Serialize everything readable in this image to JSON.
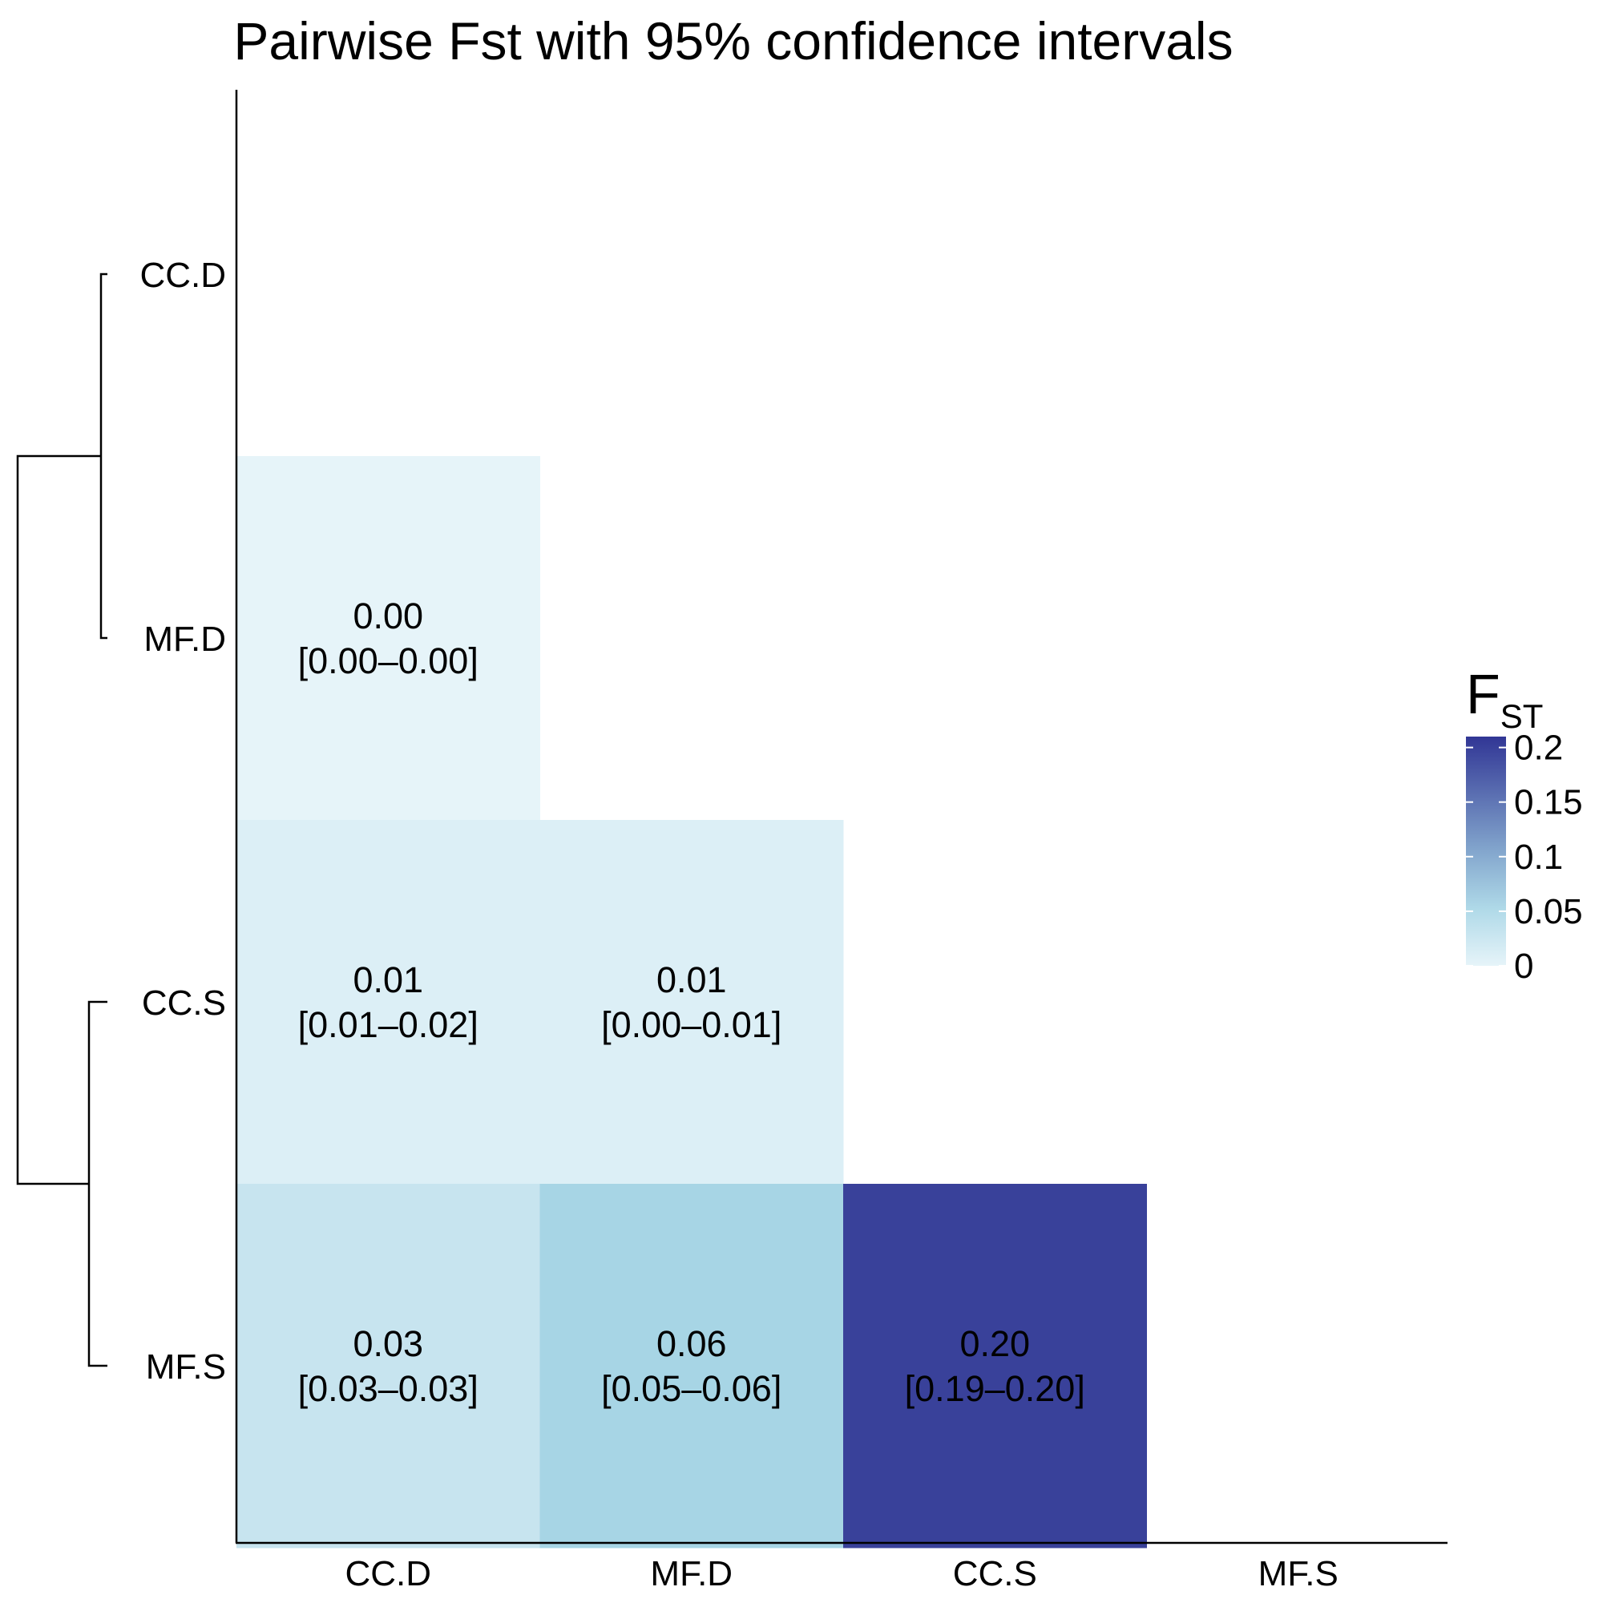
{
  "chart_data": {
    "type": "heatmap",
    "title": "Pairwise Fst with 95% confidence intervals",
    "rows": [
      "CC.D",
      "MF.D",
      "CC.S",
      "MF.S"
    ],
    "columns": [
      "CC.D",
      "MF.D",
      "CC.S",
      "MF.S"
    ],
    "cells": [
      {
        "row": "MF.D",
        "col": "CC.D",
        "value": 0.0,
        "label": "0.00",
        "ci": "[0.00–0.00]"
      },
      {
        "row": "CC.S",
        "col": "CC.D",
        "value": 0.01,
        "label": "0.01",
        "ci": "[0.01–0.02]"
      },
      {
        "row": "CC.S",
        "col": "MF.D",
        "value": 0.01,
        "label": "0.01",
        "ci": "[0.00–0.01]"
      },
      {
        "row": "MF.S",
        "col": "CC.D",
        "value": 0.03,
        "label": "0.03",
        "ci": "[0.03–0.03]"
      },
      {
        "row": "MF.S",
        "col": "MF.D",
        "value": 0.06,
        "label": "0.06",
        "ci": "[0.05–0.06]"
      },
      {
        "row": "MF.S",
        "col": "CC.S",
        "value": 0.2,
        "label": "0.20",
        "ci": "[0.19–0.20]"
      }
    ],
    "dendrogram": {
      "groups": [
        [
          "CC.D",
          "MF.D"
        ],
        [
          "CC.S",
          "MF.S"
        ]
      ]
    },
    "legend": {
      "title": "F",
      "subscript": "ST",
      "ticks": [
        "0.2",
        "0.15",
        "0.1",
        "0.05",
        "0"
      ],
      "tick_values": [
        0.2,
        0.15,
        0.1,
        0.05,
        0
      ],
      "range": [
        0,
        0.21
      ],
      "color_low": "#e6f4f9",
      "color_mid": "#a4d3e4",
      "color_high": "#313695"
    }
  }
}
